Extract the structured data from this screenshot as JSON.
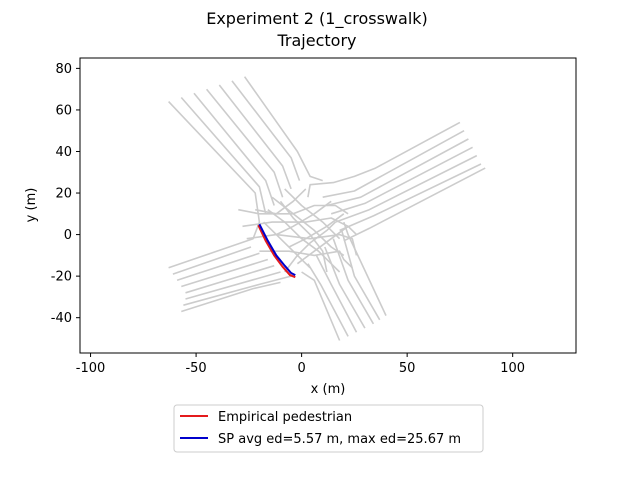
{
  "chart_data": {
    "type": "line",
    "title": "Experiment 2 (1_crosswalk)",
    "subtitle": "Trajectory",
    "xlabel": "x (m)",
    "ylabel": "y (m)",
    "xlim": [
      -105,
      130
    ],
    "ylim": [
      -57,
      85
    ],
    "xticks": [
      -100,
      -50,
      0,
      50,
      100
    ],
    "yticks": [
      -40,
      -20,
      0,
      20,
      40,
      60,
      80
    ],
    "grid": false,
    "legend_position": "bottom-center",
    "colors": {
      "lanes": "#cccccc",
      "empirical": "#e41a1c",
      "sp": "#0000cc",
      "axes": "#000000"
    },
    "lane_segments": [
      [
        [
          -63,
          64
        ],
        [
          -22,
          20
        ],
        [
          -20,
          6
        ],
        [
          -23,
          -2
        ],
        [
          -63,
          -16
        ]
      ],
      [
        [
          -57,
          66
        ],
        [
          -20,
          23
        ],
        [
          -17,
          10
        ]
      ],
      [
        [
          -51,
          68
        ],
        [
          -17,
          26
        ],
        [
          -13,
          14
        ]
      ],
      [
        [
          -45,
          70
        ],
        [
          -13,
          30
        ],
        [
          -9,
          18
        ]
      ],
      [
        [
          -39,
          72
        ],
        [
          -9,
          33
        ],
        [
          -5,
          22
        ]
      ],
      [
        [
          -33,
          74
        ],
        [
          -5,
          37
        ],
        [
          -1,
          26
        ]
      ],
      [
        [
          -27,
          76
        ],
        [
          -2,
          40
        ],
        [
          4,
          28
        ],
        [
          10,
          26
        ]
      ],
      [
        [
          -61,
          -19
        ],
        [
          -24,
          -6
        ]
      ],
      [
        [
          -59,
          -22
        ],
        [
          -20,
          -9
        ]
      ],
      [
        [
          -57,
          -25
        ],
        [
          -16,
          -12
        ]
      ],
      [
        [
          -55,
          -28
        ],
        [
          -13,
          -15
        ]
      ],
      [
        [
          -55,
          -31
        ],
        [
          -10,
          -18
        ]
      ],
      [
        [
          -56,
          -34
        ],
        [
          -20,
          -24
        ],
        [
          -5,
          -20
        ]
      ],
      [
        [
          -57,
          -37
        ],
        [
          -23,
          -26
        ],
        [
          -10,
          -23
        ]
      ],
      [
        [
          75,
          54
        ],
        [
          35,
          32
        ],
        [
          25,
          28
        ],
        [
          15,
          25
        ],
        [
          4,
          24
        ],
        [
          3,
          18
        ]
      ],
      [
        [
          77,
          50
        ],
        [
          25,
          21
        ],
        [
          10,
          18
        ]
      ],
      [
        [
          79,
          46
        ],
        [
          28,
          18
        ],
        [
          12,
          14
        ]
      ],
      [
        [
          81,
          42
        ],
        [
          30,
          15
        ],
        [
          14,
          10
        ]
      ],
      [
        [
          83,
          38
        ],
        [
          32,
          12
        ],
        [
          16,
          6
        ]
      ],
      [
        [
          85,
          34
        ],
        [
          34,
          9
        ],
        [
          18,
          2
        ]
      ],
      [
        [
          87,
          32
        ],
        [
          32,
          3
        ],
        [
          20,
          -3
        ]
      ],
      [
        [
          18,
          -51
        ],
        [
          6,
          -22
        ],
        [
          0,
          -18
        ]
      ],
      [
        [
          22,
          -49
        ],
        [
          9,
          -24
        ],
        [
          3,
          -14
        ]
      ],
      [
        [
          26,
          -47
        ],
        [
          14,
          -24
        ],
        [
          7,
          -10
        ]
      ],
      [
        [
          30,
          -45
        ],
        [
          18,
          -24
        ],
        [
          11,
          -6
        ]
      ],
      [
        [
          34,
          -43
        ],
        [
          22,
          -22
        ],
        [
          15,
          -2
        ]
      ],
      [
        [
          37,
          -41
        ],
        [
          25,
          -20
        ],
        [
          19,
          2
        ]
      ],
      [
        [
          40,
          -39
        ],
        [
          22,
          0
        ],
        [
          20,
          6
        ]
      ],
      [
        [
          -30,
          12
        ],
        [
          -20,
          10
        ],
        [
          -4,
          10
        ],
        [
          6,
          14
        ],
        [
          16,
          14
        ],
        [
          22,
          10
        ]
      ],
      [
        [
          -28,
          4
        ],
        [
          -14,
          6
        ],
        [
          2,
          6
        ],
        [
          14,
          8
        ],
        [
          22,
          4
        ],
        [
          26,
          0
        ]
      ],
      [
        [
          -26,
          -2
        ],
        [
          -12,
          0
        ],
        [
          4,
          -2
        ],
        [
          18,
          0
        ],
        [
          24,
          -2
        ],
        [
          26,
          -10
        ]
      ],
      [
        [
          -20,
          -8
        ],
        [
          -6,
          -8
        ],
        [
          6,
          -10
        ],
        [
          18,
          -8
        ],
        [
          20,
          -12
        ],
        [
          24,
          -16
        ]
      ],
      [
        [
          -16,
          12
        ],
        [
          -8,
          6
        ],
        [
          0,
          -2
        ],
        [
          8,
          -8
        ],
        [
          14,
          -14
        ],
        [
          18,
          -18
        ]
      ],
      [
        [
          -14,
          18
        ],
        [
          -4,
          10
        ],
        [
          6,
          2
        ],
        [
          14,
          -6
        ],
        [
          20,
          -10
        ]
      ],
      [
        [
          -8,
          22
        ],
        [
          0,
          14
        ],
        [
          10,
          6
        ],
        [
          18,
          -2
        ]
      ],
      [
        [
          -18,
          6
        ],
        [
          -12,
          0
        ],
        [
          -4,
          -8
        ],
        [
          4,
          -16
        ]
      ],
      [
        [
          -10,
          16
        ],
        [
          -4,
          8
        ],
        [
          4,
          0
        ],
        [
          10,
          -8
        ],
        [
          12,
          -18
        ]
      ],
      [
        [
          -12,
          0
        ],
        [
          -4,
          4
        ],
        [
          6,
          10
        ],
        [
          14,
          16
        ]
      ],
      [
        [
          -6,
          -6
        ],
        [
          2,
          -2
        ],
        [
          12,
          4
        ],
        [
          20,
          10
        ]
      ],
      [
        [
          -2,
          -14
        ],
        [
          6,
          -8
        ],
        [
          14,
          -2
        ],
        [
          22,
          4
        ]
      ],
      [
        [
          -22,
          12
        ],
        [
          -12,
          10
        ],
        [
          -4,
          16
        ],
        [
          2,
          22
        ]
      ],
      [
        [
          -8,
          -18
        ],
        [
          -2,
          -10
        ],
        [
          4,
          -4
        ],
        [
          12,
          2
        ],
        [
          16,
          6
        ]
      ]
    ],
    "series": [
      {
        "name": "Empirical pedestrian",
        "color": "#e41a1c",
        "x": [
          -20.5,
          -17,
          -13,
          -9,
          -5.5,
          -3
        ],
        "y": [
          4.5,
          -3,
          -10,
          -15.5,
          -19.5,
          -20.5
        ]
      },
      {
        "name": "SP avg ed=5.57 m, max ed=25.67 m",
        "color": "#0000cc",
        "x": [
          -20,
          -16,
          -12,
          -8,
          -5,
          -3
        ],
        "y": [
          5,
          -3,
          -10,
          -15,
          -18.5,
          -19.5
        ]
      }
    ]
  }
}
